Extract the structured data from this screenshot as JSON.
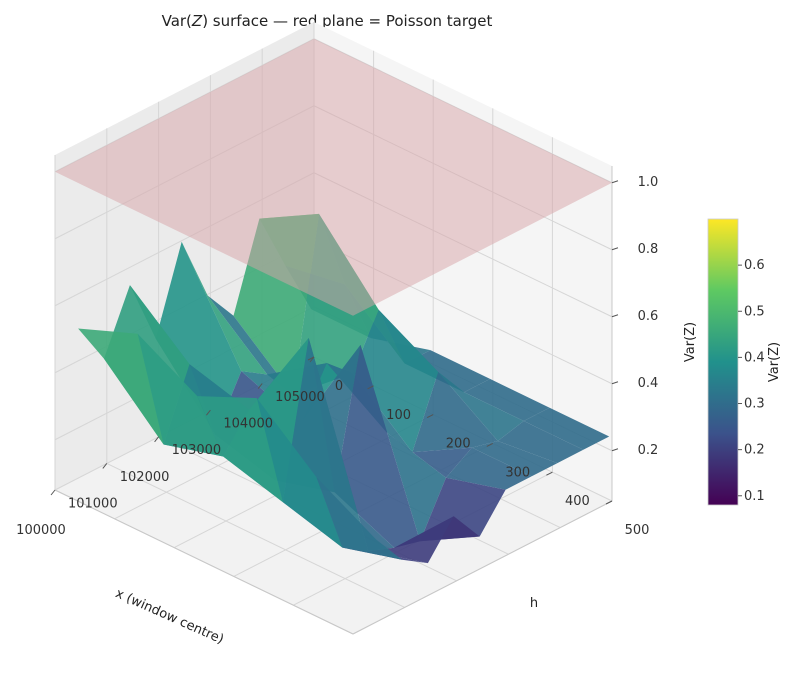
{
  "chart_data": {
    "type": "surface3d",
    "title_prefix": "Var(",
    "title_var": "Z",
    "title_suffix": ") surface — red plane = Poisson target",
    "xlabel": "x (window centre)",
    "ylabel": "h",
    "zlabel": "Var(Z)",
    "xlim": [
      100000,
      105000
    ],
    "ylim": [
      0,
      500
    ],
    "zlim": [
      0.05,
      1.05
    ],
    "xticks": [
      100000,
      101000,
      102000,
      103000,
      104000,
      105000
    ],
    "yticks": [
      0,
      100,
      200,
      300,
      400,
      500
    ],
    "zticks": [
      0.2,
      0.4,
      0.6,
      0.8,
      1.0
    ],
    "zticklabels": [
      "0.2",
      "0.4",
      "0.6",
      "0.8",
      "1.0"
    ],
    "plane": {
      "z": 1.0,
      "color": "#d8a4a8"
    },
    "surface_x": [
      100100,
      100600,
      101100,
      101600,
      102100,
      102600,
      103100,
      103600,
      104100,
      104600
    ],
    "surface_y": [
      30,
      130,
      230,
      330,
      430,
      530
    ],
    "surface_z": [
      [
        0.55,
        0.42,
        0.6,
        0.4,
        0.65,
        0.45,
        0.35,
        0.6,
        0.42,
        0.25
      ],
      [
        0.62,
        0.25,
        0.45,
        0.2,
        0.35,
        0.3,
        0.2,
        0.7,
        0.45,
        0.25
      ],
      [
        0.52,
        0.3,
        0.4,
        0.15,
        0.28,
        0.42,
        0.35,
        0.5,
        0.3,
        0.3
      ],
      [
        0.6,
        0.25,
        0.7,
        0.2,
        0.6,
        0.3,
        0.2,
        0.4,
        0.3,
        0.3
      ],
      [
        0.45,
        0.2,
        0.15,
        0.12,
        0.1,
        0.25,
        0.3,
        0.28,
        0.3,
        0.3
      ],
      [
        0.35,
        0.25,
        0.2,
        0.3,
        0.2,
        0.3,
        0.3,
        0.3,
        0.3,
        0.3
      ]
    ],
    "colormap": "viridis",
    "colorbar": {
      "label": "Var(Z)",
      "min": 0.08,
      "max": 0.7,
      "ticks": [
        0.1,
        0.2,
        0.3,
        0.4,
        0.5,
        0.6
      ],
      "ticklabels": [
        "0.1",
        "0.2",
        "0.3",
        "0.4",
        "0.5",
        "0.6"
      ]
    }
  }
}
